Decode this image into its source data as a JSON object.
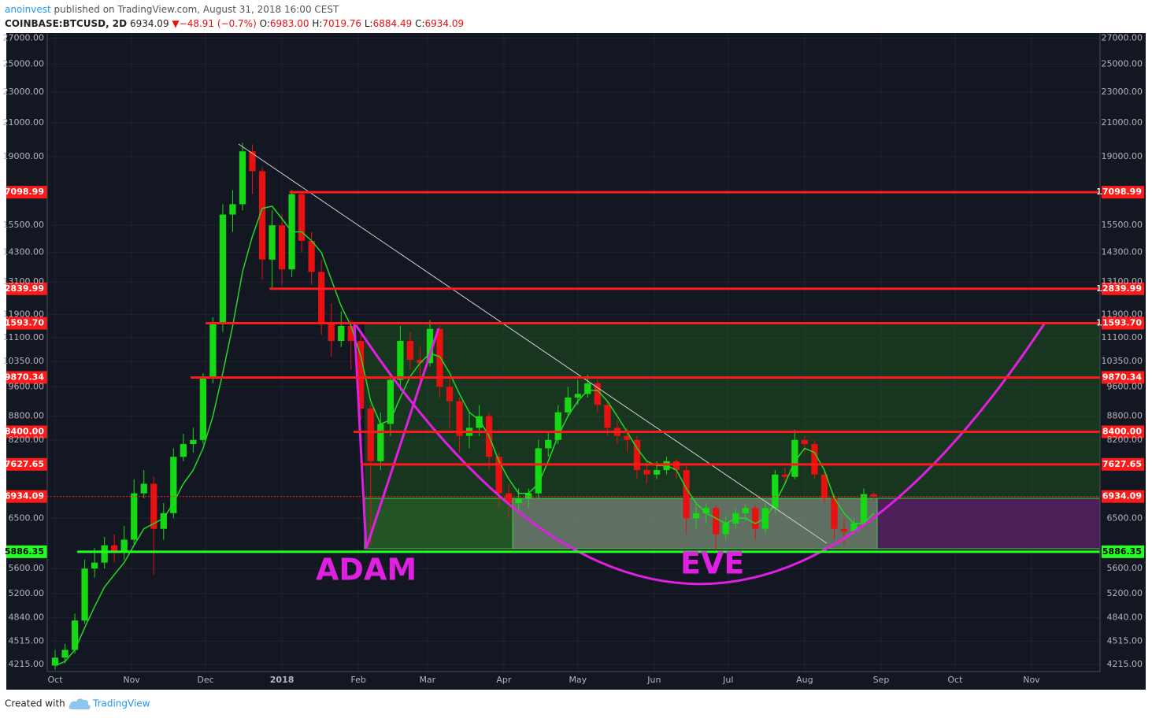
{
  "header": {
    "author": "anoinvest",
    "published": "published on TradingView.com, August 31, 2018 16:00 CEST",
    "symbol": "COINBASE:BTCUSD, 2D",
    "price": "6934.09",
    "change": "−48.91 (−0.7%)",
    "ohlc": [
      {
        "label": "O:",
        "value": "6983.00"
      },
      {
        "label": "H:",
        "value": "7019.76"
      },
      {
        "label": "L:",
        "value": "6884.49"
      },
      {
        "label": "C:",
        "value": "6934.09"
      }
    ]
  },
  "chart_data": {
    "type": "candlestick",
    "log_scale": true,
    "grid": true,
    "up_color": "#16d916",
    "down_color": "#e81010",
    "xlim": [
      -3.2,
      423.8
    ],
    "xticks": [
      {
        "value": 0,
        "label": "Oct"
      },
      {
        "value": 31,
        "label": "Nov"
      },
      {
        "value": 61,
        "label": "Dec"
      },
      {
        "value": 92,
        "label": "2018"
      },
      {
        "value": 123,
        "label": "Feb"
      },
      {
        "value": 151,
        "label": "Mar"
      },
      {
        "value": 182,
        "label": "Apr"
      },
      {
        "value": 212,
        "label": "May"
      },
      {
        "value": 243,
        "label": "Jun"
      },
      {
        "value": 273,
        "label": "Jul"
      },
      {
        "value": 304,
        "label": "Aug"
      },
      {
        "value": 335,
        "label": "Sep"
      },
      {
        "value": 365,
        "label": "Oct"
      },
      {
        "value": 396,
        "label": "Nov"
      }
    ],
    "ylim": [
      4126,
      27410
    ],
    "yticks": [
      {
        "value": 27000,
        "label": "27000.00"
      },
      {
        "value": 25000,
        "label": "25000.00"
      },
      {
        "value": 23000,
        "label": "23000.00"
      },
      {
        "value": 21000,
        "label": "21000.00"
      },
      {
        "value": 19000,
        "label": "19000.00"
      },
      {
        "value": 15500,
        "label": "15500.00"
      },
      {
        "value": 14300,
        "label": "14300.00"
      },
      {
        "value": 13100,
        "label": "13100.00"
      },
      {
        "value": 11900,
        "label": "11900.00"
      },
      {
        "value": 11100,
        "label": "11100.00"
      },
      {
        "value": 10350,
        "label": "10350.00"
      },
      {
        "value": 9600,
        "label": "9600.00"
      },
      {
        "value": 8800,
        "label": "8800.00"
      },
      {
        "value": 8200,
        "label": "8200.00"
      },
      {
        "value": 6500,
        "label": "6500.00"
      },
      {
        "value": 5600,
        "label": "5600.00"
      },
      {
        "value": 5200,
        "label": "5200.00"
      },
      {
        "value": 4840,
        "label": "4840.00"
      },
      {
        "value": 4515,
        "label": "4515.00"
      },
      {
        "value": 4215,
        "label": "4215.00"
      }
    ],
    "x": [
      0,
      4,
      8,
      12,
      16,
      20,
      24,
      28,
      32,
      36,
      40,
      44,
      48,
      52,
      56,
      60,
      64,
      68,
      72,
      76,
      80,
      84,
      88,
      92,
      96,
      100,
      104,
      108,
      112,
      116,
      120,
      124,
      128,
      132,
      136,
      140,
      144,
      148,
      152,
      156,
      160,
      164,
      168,
      172,
      176,
      180,
      184,
      188,
      192,
      196,
      200,
      204,
      208,
      212,
      216,
      220,
      224,
      228,
      232,
      236,
      240,
      244,
      248,
      252,
      256,
      260,
      264,
      268,
      272,
      276,
      280,
      284,
      288,
      292,
      296,
      300,
      304,
      308,
      312,
      316,
      320,
      324,
      328,
      332
    ],
    "open": [
      4200,
      4300,
      4400,
      4800,
      5600,
      5700,
      6000,
      5900,
      6100,
      7000,
      7200,
      6300,
      6600,
      7800,
      8100,
      8200,
      9900,
      11600,
      16000,
      16500,
      19300,
      18200,
      14000,
      15500,
      13600,
      17000,
      14800,
      13500,
      11600,
      11000,
      11500,
      11000,
      9000,
      7700,
      8600,
      9800,
      11000,
      10400,
      10300,
      11400,
      9600,
      9200,
      8300,
      8500,
      8800,
      7800,
      7000,
      6800,
      6900,
      7000,
      8000,
      8200,
      8900,
      9300,
      9400,
      9700,
      9100,
      8500,
      8300,
      8200,
      7500,
      7400,
      7500,
      7700,
      7500,
      6500,
      6600,
      6700,
      6200,
      6400,
      6600,
      6700,
      6300,
      6700,
      7400,
      7350,
      8200,
      8100,
      7400,
      6900,
      6300,
      6250,
      6400,
      6983
    ],
    "high": [
      4400,
      4480,
      4900,
      5750,
      5950,
      6150,
      6200,
      6350,
      7300,
      7500,
      7350,
      6800,
      8000,
      8350,
      8500,
      10000,
      11800,
      16500,
      17200,
      19800,
      19700,
      18400,
      16200,
      16000,
      17200,
      17100,
      15200,
      14000,
      12300,
      12000,
      11700,
      11300,
      9100,
      8900,
      10000,
      11500,
      11300,
      10800,
      11700,
      11500,
      9900,
      9300,
      8900,
      9100,
      8900,
      7900,
      7200,
      7100,
      7100,
      8200,
      8400,
      9100,
      9600,
      9800,
      9950,
      9800,
      9200,
      8700,
      8500,
      8300,
      7700,
      7700,
      7800,
      7750,
      7600,
      6800,
      6800,
      6750,
      6550,
      6700,
      6800,
      6750,
      6800,
      7500,
      7550,
      8450,
      8300,
      8200,
      7500,
      7000,
      6500,
      6500,
      7100,
      7019.76
    ],
    "low": [
      4150,
      4230,
      4350,
      4750,
      5450,
      5600,
      5700,
      5750,
      6000,
      6900,
      5500,
      6100,
      6500,
      7700,
      7900,
      8100,
      9700,
      11300,
      15200,
      16200,
      17000,
      13200,
      12800,
      13000,
      13300,
      14300,
      13000,
      11200,
      10500,
      10800,
      10100,
      8700,
      6000,
      7500,
      8300,
      9500,
      10100,
      9700,
      10200,
      9300,
      8500,
      7900,
      8000,
      8300,
      7500,
      6700,
      6500,
      6600,
      6700,
      6900,
      7800,
      8100,
      8800,
      9100,
      9300,
      8900,
      8300,
      8100,
      7900,
      7300,
      7200,
      7300,
      7400,
      7300,
      6200,
      6300,
      6400,
      5900,
      6100,
      6300,
      6450,
      6100,
      6200,
      6600,
      7200,
      7300,
      7900,
      7300,
      6800,
      6100,
      6000,
      6200,
      6350,
      6884.49
    ],
    "close": [
      4300,
      4400,
      4800,
      5600,
      5700,
      6000,
      5900,
      6100,
      7000,
      7200,
      6300,
      6600,
      7800,
      8100,
      8200,
      9900,
      11600,
      16000,
      16500,
      19300,
      18200,
      14000,
      15500,
      13600,
      17000,
      14800,
      13500,
      11600,
      11000,
      11500,
      11000,
      9000,
      7700,
      8600,
      9800,
      11000,
      10400,
      10300,
      11400,
      9600,
      9200,
      8300,
      8500,
      8800,
      7800,
      7000,
      6800,
      6900,
      7000,
      8000,
      8200,
      8900,
      9300,
      9400,
      9700,
      9100,
      8500,
      8300,
      8200,
      7500,
      7400,
      7500,
      7700,
      7500,
      6500,
      6600,
      6700,
      6200,
      6400,
      6600,
      6700,
      6300,
      6700,
      7400,
      7350,
      8200,
      8100,
      7400,
      6900,
      6300,
      6250,
      6400,
      6983,
      6934.09
    ],
    "ma": {
      "color": "#22d822",
      "values": [
        4200,
        4250,
        4400,
        4700,
        5000,
        5300,
        5500,
        5700,
        6000,
        6300,
        6400,
        6500,
        6800,
        7200,
        7500,
        8000,
        8800,
        10000,
        11500,
        13500,
        15000,
        16300,
        16400,
        15800,
        15200,
        15200,
        14800,
        14300,
        13200,
        12200,
        11500,
        10500,
        9200,
        8600,
        8700,
        9300,
        9900,
        10300,
        10600,
        10500,
        10000,
        9400,
        8900,
        8700,
        8300,
        7700,
        7300,
        7000,
        7000,
        7200,
        7700,
        8300,
        8800,
        9200,
        9500,
        9500,
        9200,
        8800,
        8400,
        8000,
        7700,
        7600,
        7600,
        7500,
        7100,
        6800,
        6600,
        6500,
        6400,
        6500,
        6500,
        6400,
        6500,
        6800,
        7200,
        7700,
        8000,
        7900,
        7500,
        6900,
        6600,
        6400,
        6400,
        6600
      ]
    },
    "levels": [
      {
        "value": 17098.99,
        "from": 95,
        "color": "#ff1a1a"
      },
      {
        "value": 12839.99,
        "from": 87,
        "color": "#ff1a1a"
      },
      {
        "value": 11593.7,
        "label": "11593.70",
        "from": 61,
        "color": "#ff1a1a"
      },
      {
        "value": 9870.34,
        "from": 55,
        "color": "#ff1a1a"
      },
      {
        "value": 8400,
        "label": "8400.00",
        "from": 121,
        "color": "#ff1a1a"
      },
      {
        "value": 7627.65,
        "from": 124,
        "color": "#ff1a1a"
      },
      {
        "value": 6934.09,
        "color": "#ff1a1a",
        "dotted": true
      },
      {
        "value": 5886.35,
        "from": 9,
        "color": "#22ff22"
      }
    ],
    "annotations": [
      "ADAM",
      "EVE"
    ]
  },
  "footer": {
    "created": "Created with",
    "brand": "TradingView"
  }
}
